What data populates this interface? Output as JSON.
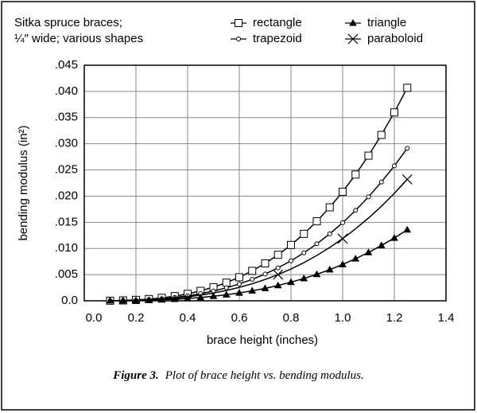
{
  "chart_data": {
    "type": "line",
    "legend_title": [
      "Sitka spruce braces;",
      "¼″ wide; various shapes"
    ],
    "x_label": "brace height  (inches)",
    "y_label": "bending modulus (in²)",
    "caption_label": "Figure 3.",
    "caption_text": "Plot of brace height vs. bending modulus.",
    "x": [
      0.1,
      0.15,
      0.2,
      0.25,
      0.3,
      0.35,
      0.4,
      0.45,
      0.5,
      0.55,
      0.6,
      0.65,
      0.7,
      0.75,
      0.8,
      0.85,
      0.9,
      0.95,
      1.0,
      1.05,
      1.1,
      1.15,
      1.2,
      1.25
    ],
    "series": [
      {
        "name": "rectangle",
        "color": "#000000",
        "marker": "square",
        "values": [
          2e-05,
          7e-05,
          0.00017,
          0.00033,
          0.00056,
          0.00089,
          0.00133,
          0.0019,
          0.0026,
          0.00347,
          0.0045,
          0.00572,
          0.00715,
          0.00879,
          0.01067,
          0.01279,
          0.01519,
          0.01786,
          0.02083,
          0.02412,
          0.02773,
          0.03169,
          0.036,
          0.04069
        ]
      },
      {
        "name": "trapezoid",
        "color": "#000000",
        "marker": "circle",
        "values": [
          1e-05,
          5e-05,
          0.00012,
          0.00023,
          0.0004,
          0.00064,
          0.00095,
          0.00136,
          0.00186,
          0.00248,
          0.00322,
          0.0041,
          0.00512,
          0.00629,
          0.00764,
          0.00916,
          0.01088,
          0.01279,
          0.01492,
          0.01727,
          0.01985,
          0.02269,
          0.02578,
          0.02913
        ]
      },
      {
        "name": "triangle",
        "color": "#000000",
        "marker": "triangle",
        "values": [
          1e-05,
          2e-05,
          6e-05,
          0.00011,
          0.00019,
          0.0003,
          0.00044,
          0.00063,
          0.00087,
          0.00116,
          0.0015,
          0.00191,
          0.00238,
          0.00293,
          0.00356,
          0.00426,
          0.00506,
          0.00595,
          0.00694,
          0.00804,
          0.00924,
          0.01056,
          0.012,
          0.01356
        ]
      },
      {
        "name": "paraboloid",
        "color": "#000000",
        "marker": "cross",
        "marker_x": [
          0.75,
          1.0,
          1.25
        ],
        "values": [
          1e-05,
          4e-05,
          0.0001,
          0.00019,
          0.00032,
          0.00051,
          0.00076,
          0.00108,
          0.00148,
          0.00198,
          0.00257,
          0.00326,
          0.00408,
          0.00501,
          0.00608,
          0.00729,
          0.00866,
          0.01018,
          0.01187,
          0.01375,
          0.01581,
          0.01806,
          0.02052,
          0.02319
        ]
      }
    ],
    "xlim": [
      0,
      1.4
    ],
    "xticks": [
      {
        "value": 0,
        "label": "0.0"
      },
      0.2,
      0.4,
      0.6,
      0.8,
      {
        "value": 1,
        "label": "1.0"
      },
      1.2,
      1.4
    ],
    "ylim": [
      0,
      0.045
    ],
    "yticks": [
      {
        "value": 0,
        "label": "0.0"
      },
      {
        "value": 0.005,
        "label": ".005"
      },
      {
        "value": 0.01,
        "label": ".010"
      },
      {
        "value": 0.015,
        "label": ".015"
      },
      {
        "value": 0.02,
        "label": ".020"
      },
      {
        "value": 0.025,
        "label": ".025"
      },
      {
        "value": 0.03,
        "label": ".030"
      },
      {
        "value": 0.035,
        "label": ".035"
      },
      {
        "value": 0.04,
        "label": ".040"
      },
      {
        "value": 0.045,
        "label": ".045"
      }
    ],
    "grid": true
  }
}
